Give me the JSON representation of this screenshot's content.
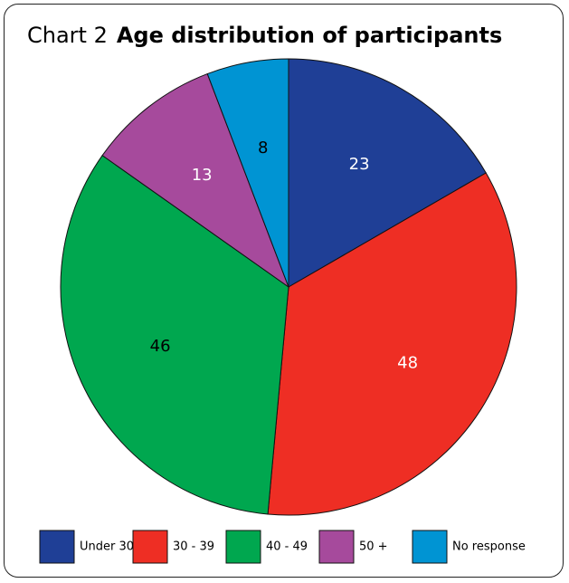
{
  "title": {
    "number": "Chart 2",
    "text": "Age distribution of participants"
  },
  "chart_data": {
    "type": "pie",
    "title": "Age distribution of participants",
    "categories": [
      "Under 30",
      "30 - 39",
      "40 - 49",
      "50 +",
      "No response"
    ],
    "values": [
      23,
      48,
      46,
      13,
      8
    ],
    "colors": [
      "#1f3f96",
      "#ee2e24",
      "#00a74f",
      "#a64a9c",
      "#0094d3"
    ],
    "label_colors": [
      "#ffffff",
      "#ffffff",
      "#000000",
      "#ffffff",
      "#000000"
    ],
    "start": "12 o'clock",
    "direction": "clockwise",
    "legend_position": "bottom"
  }
}
